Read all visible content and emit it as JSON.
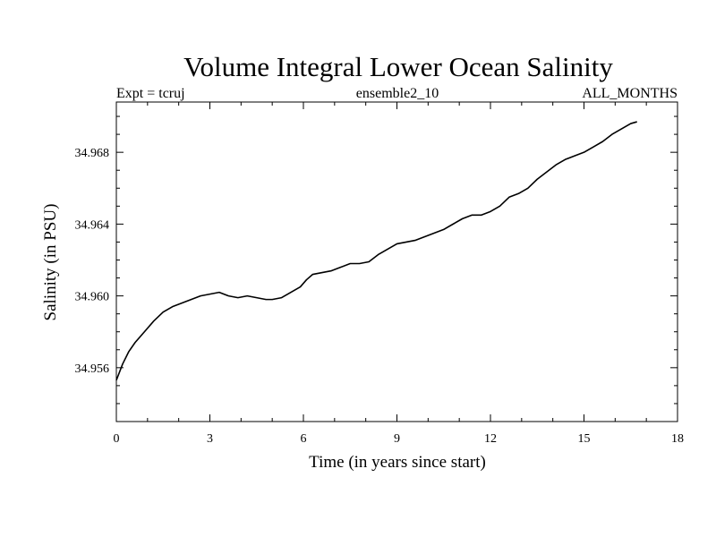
{
  "chart_data": {
    "type": "line",
    "title": "Volume Integral Lower Ocean Salinity",
    "subtitle_left": "Expt = tcruj",
    "subtitle_center": "ensemble2_10",
    "subtitle_right": "ALL_MONTHS",
    "xlabel": "Time (in years since start)",
    "ylabel": "Salinity (in PSU)",
    "xlim": [
      0,
      18
    ],
    "ylim": [
      34.953,
      34.9708
    ],
    "x_ticks": [
      0,
      3,
      6,
      9,
      12,
      15,
      18
    ],
    "x_tick_labels": [
      "0",
      "3",
      "6",
      "9",
      "12",
      "15",
      "18"
    ],
    "y_ticks": [
      34.956,
      34.96,
      34.964,
      34.968
    ],
    "y_tick_labels": [
      "34.956",
      "34.960",
      "34.964",
      "34.968"
    ],
    "grid": false,
    "series": [
      {
        "name": "Salinity",
        "color": "#000000",
        "x": [
          0,
          0.2,
          0.4,
          0.6,
          0.9,
          1.2,
          1.5,
          1.8,
          2.1,
          2.4,
          2.7,
          3.0,
          3.3,
          3.6,
          3.9,
          4.2,
          4.5,
          4.8,
          5.0,
          5.3,
          5.6,
          5.9,
          6.1,
          6.3,
          6.6,
          6.9,
          7.2,
          7.5,
          7.8,
          8.1,
          8.4,
          8.7,
          9.0,
          9.3,
          9.6,
          9.9,
          10.2,
          10.5,
          10.8,
          11.1,
          11.4,
          11.7,
          12.0,
          12.3,
          12.6,
          12.9,
          13.2,
          13.5,
          13.8,
          14.1,
          14.4,
          14.7,
          15.0,
          15.3,
          15.6,
          15.9,
          16.2,
          16.5,
          16.7
        ],
        "values": [
          34.9553,
          34.9562,
          34.9569,
          34.9574,
          34.958,
          34.9586,
          34.9591,
          34.9594,
          34.9596,
          34.9598,
          34.96,
          34.9601,
          34.9602,
          34.96,
          34.9599,
          34.96,
          34.9599,
          34.9598,
          34.9598,
          34.9599,
          34.9602,
          34.9605,
          34.9609,
          34.9612,
          34.9613,
          34.9614,
          34.9616,
          34.9618,
          34.9618,
          34.9619,
          34.9623,
          34.9626,
          34.9629,
          34.963,
          34.9631,
          34.9633,
          34.9635,
          34.9637,
          34.964,
          34.9643,
          34.9645,
          34.9645,
          34.9647,
          34.965,
          34.9655,
          34.9657,
          34.966,
          34.9665,
          34.9669,
          34.9673,
          34.9676,
          34.9678,
          34.968,
          34.9683,
          34.9686,
          34.969,
          34.9693,
          34.9696,
          34.9697
        ]
      }
    ]
  }
}
